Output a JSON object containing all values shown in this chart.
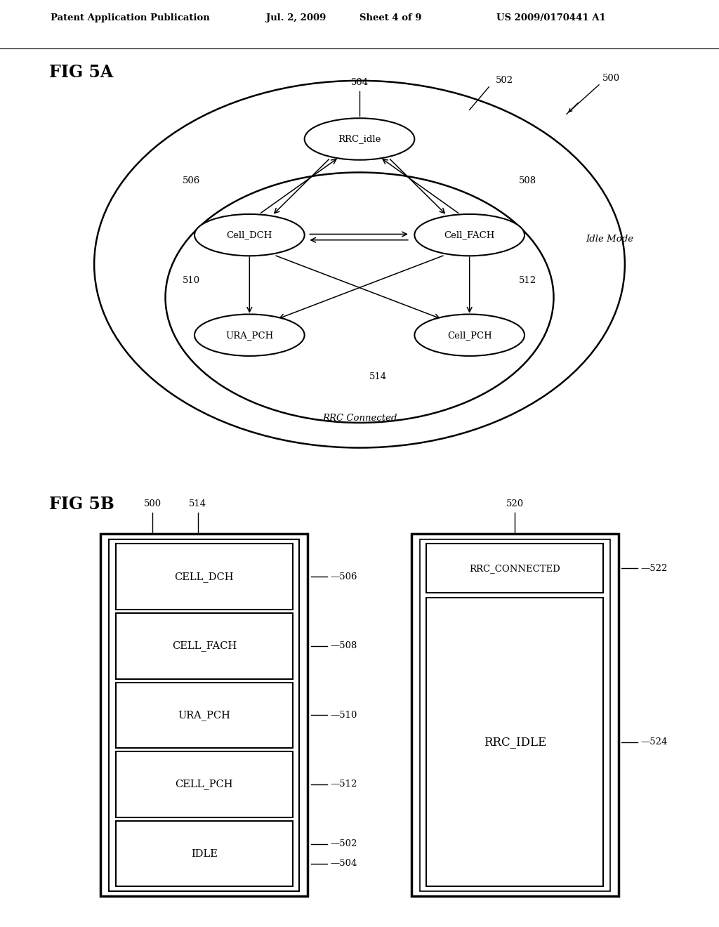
{
  "bg_color": "#ffffff",
  "header_text": "Patent Application Publication",
  "header_date": "Jul. 2, 2009",
  "header_sheet": "Sheet 4 of 9",
  "header_patent": "US 2009/0170441 A1",
  "fig5a_label": "FIG 5A",
  "fig5b_label": "FIG 5B",
  "node_labels": {
    "RRC_idle": "RRC_idle",
    "Cell_DCH": "Cell_DCH",
    "Cell_FACH": "Cell_FACH",
    "URA_PCH": "URA_PCH",
    "Cell_PCH": "Cell_PCH"
  },
  "idle_mode_label": "Idle Mode",
  "rrc_connected_label": "RRC Connected",
  "cell_labels_left": [
    "CELL_DCH",
    "CELL_FACH",
    "URA_PCH",
    "CELL_PCH",
    "IDLE"
  ],
  "refs_left": [
    "506",
    "508",
    "510",
    "512"
  ],
  "ref_500": "500",
  "ref_502": "502",
  "ref_504": "504",
  "ref_506": "506",
  "ref_508": "508",
  "ref_510": "510",
  "ref_512": "512",
  "ref_514": "514",
  "ref_520": "520",
  "ref_522": "522",
  "ref_524": "524"
}
